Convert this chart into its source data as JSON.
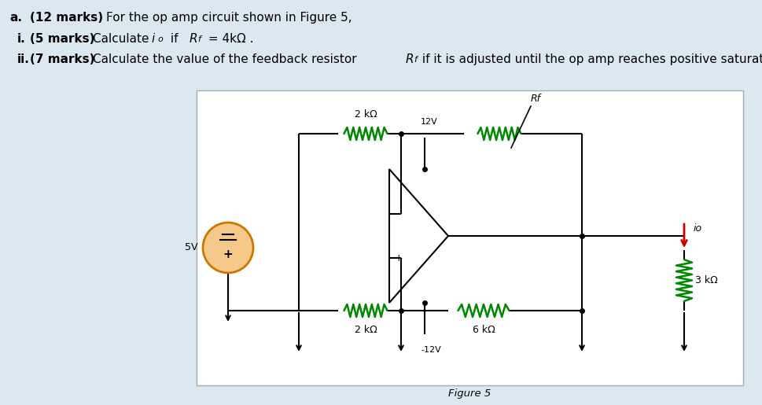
{
  "background_color": "#dce8f0",
  "circuit_bg": "#ffffff",
  "resistor_color": "#008800",
  "wire_color": "#000000",
  "io_arrow_color": "#cc0000",
  "source_fill": "#f5c98a",
  "source_border": "#cc7700",
  "figure_caption": "Figure 5",
  "text_a_bold": "a.  (12 marks)",
  "text_a_normal": " For the op amp circuit shown in Figure 5,",
  "text_i_bold": "i.  (5 marks)",
  "text_i_normal1": " Calculate ",
  "text_i_italic1": "i",
  "text_i_sub": "o",
  "text_i_normal2": " if  ",
  "text_i_italic2": "R",
  "text_i_sub2": "f",
  "text_i_normal3": " = 4kΩ .",
  "text_ii_bold": "ii.  (7 marks)",
  "text_ii_normal1": " Calculate the value of the feedback resistor ",
  "text_ii_italic": "R",
  "text_ii_sub": "f",
  "text_ii_normal2": " if it is adjusted until the op amp reaches positive saturation."
}
